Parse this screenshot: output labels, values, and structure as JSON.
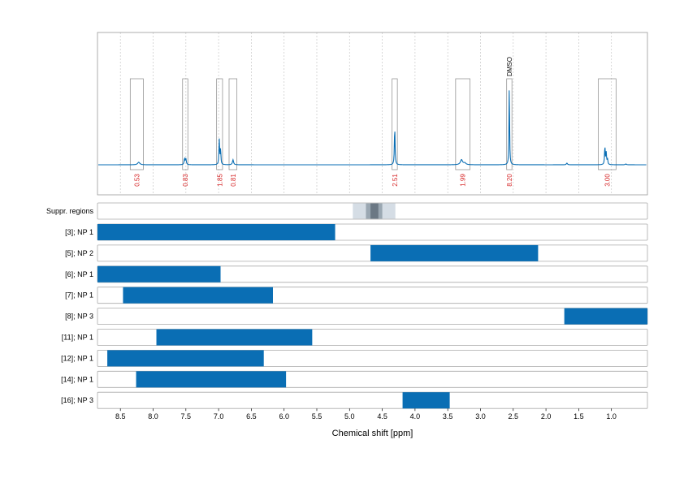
{
  "chart_data": {
    "type": "nmr-spectrum-with-range-bars",
    "xlabel": "Chemical shift [ppm]",
    "xlim": [
      8.85,
      0.45
    ],
    "x_reversed": true,
    "xticks": [
      8.5,
      8.0,
      7.5,
      7.0,
      6.5,
      6.0,
      5.5,
      5.0,
      4.5,
      4.0,
      3.5,
      3.0,
      2.5,
      2.0,
      1.5,
      1.0
    ],
    "xtick_labels": [
      "8.5",
      "8.0",
      "7.5",
      "7.0",
      "6.5",
      "6.0",
      "5.5",
      "5.0",
      "4.5",
      "4.0",
      "3.5",
      "3.0",
      "2.5",
      "2.0",
      "1.5",
      "1.0"
    ],
    "line_color": "#0a6eb4",
    "bar_color": "#0a6eb4",
    "integral_color": "#d62728",
    "spectrum_peaks": [
      {
        "ppm": 8.22,
        "height": 0.03,
        "width": 0.02
      },
      {
        "ppm": 7.52,
        "height": 0.07,
        "width": 0.008
      },
      {
        "ppm": 7.5,
        "height": 0.07,
        "width": 0.008
      },
      {
        "ppm": 6.99,
        "height": 0.3,
        "width": 0.006
      },
      {
        "ppm": 6.97,
        "height": 0.18,
        "width": 0.006
      },
      {
        "ppm": 6.78,
        "height": 0.06,
        "width": 0.01
      },
      {
        "ppm": 4.31,
        "height": 0.46,
        "width": 0.006
      },
      {
        "ppm": 3.29,
        "height": 0.06,
        "width": 0.02
      },
      {
        "ppm": 3.24,
        "height": 0.02,
        "width": 0.02
      },
      {
        "ppm": 2.56,
        "height": 0.98,
        "width": 0.005
      },
      {
        "ppm": 1.68,
        "height": 0.02,
        "width": 0.01
      },
      {
        "ppm": 1.1,
        "height": 0.22,
        "width": 0.006
      },
      {
        "ppm": 1.08,
        "height": 0.14,
        "width": 0.006
      },
      {
        "ppm": 1.06,
        "height": 0.07,
        "width": 0.006
      },
      {
        "ppm": 0.78,
        "height": 0.01,
        "width": 0.01
      }
    ],
    "integrals": [
      {
        "from": 8.35,
        "to": 8.15,
        "label": "0.53"
      },
      {
        "from": 7.55,
        "to": 7.47,
        "label": "0.83"
      },
      {
        "from": 7.03,
        "to": 6.94,
        "label": "1.85"
      },
      {
        "from": 6.84,
        "to": 6.72,
        "label": "0.81"
      },
      {
        "from": 4.35,
        "to": 4.27,
        "label": "2.51"
      },
      {
        "from": 3.38,
        "to": 3.16,
        "label": "1.99"
      },
      {
        "from": 2.6,
        "to": 2.52,
        "label": "8.20"
      },
      {
        "from": 1.2,
        "to": 0.93,
        "label": "3.00"
      }
    ],
    "annotations": [
      {
        "ppm": 2.56,
        "text": "DMSO"
      }
    ],
    "suppression": {
      "label": "Suppr. regions",
      "bands": [
        {
          "from": 4.95,
          "to": 4.3,
          "level": 1
        },
        {
          "from": 4.75,
          "to": 4.5,
          "level": 2
        },
        {
          "from": 4.68,
          "to": 4.56,
          "level": 3
        }
      ]
    },
    "ranges": [
      {
        "label": "[3]; NP 1",
        "from": 8.85,
        "to": 5.22
      },
      {
        "label": "[5]; NP 2",
        "from": 4.68,
        "to": 2.12
      },
      {
        "label": "[6]; NP 1",
        "from": 8.85,
        "to": 6.97
      },
      {
        "label": "[7]; NP 1",
        "from": 8.46,
        "to": 6.17
      },
      {
        "label": "[8]; NP 3",
        "from": 1.72,
        "to": 0.45
      },
      {
        "label": "[11]; NP 1",
        "from": 7.95,
        "to": 5.57
      },
      {
        "label": "[12]; NP 1",
        "from": 8.7,
        "to": 6.31
      },
      {
        "label": "[14]; NP 1",
        "from": 8.26,
        "to": 5.97
      },
      {
        "label": "[16]; NP 3",
        "from": 4.19,
        "to": 3.47
      }
    ]
  }
}
